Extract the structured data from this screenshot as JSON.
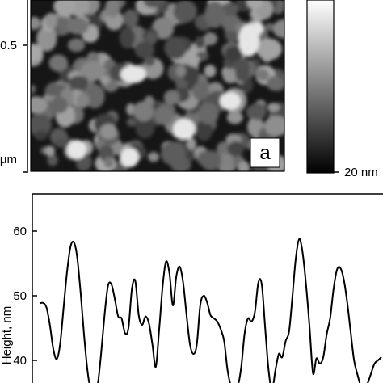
{
  "afm_image": {
    "y_tick_label": "0.5",
    "y_unit_label": "μm",
    "panel_label": "a",
    "colorbar_label": "20 nm"
  },
  "chart_data": {
    "type": "line",
    "ylabel": "Height, nm",
    "xlabel": "",
    "yticks": [
      40,
      50,
      60
    ],
    "ylim": [
      35,
      66
    ],
    "xlim": [
      0,
      100
    ],
    "grid": false,
    "legend": "none",
    "line_color": "#000000",
    "x": [
      0,
      1,
      2,
      3,
      4,
      5,
      6,
      7,
      8,
      9,
      10,
      11,
      12,
      13,
      14,
      15,
      16,
      17,
      18,
      19,
      20,
      21,
      22,
      23,
      24,
      25,
      26,
      27,
      28,
      29,
      30,
      31,
      32,
      33,
      34,
      35,
      36,
      37,
      38,
      39,
      40,
      41,
      42,
      43,
      44,
      45,
      46,
      47,
      48,
      49,
      50,
      51,
      52,
      53,
      54,
      55,
      56,
      57,
      58,
      59,
      60,
      61,
      62,
      63,
      64,
      65,
      66,
      67,
      68,
      69,
      70,
      71,
      72,
      73,
      74,
      75,
      76,
      77,
      78,
      79,
      80,
      81,
      82,
      83,
      84,
      85,
      86,
      87,
      88,
      89,
      90,
      91,
      92,
      93,
      94,
      95,
      96,
      97,
      98,
      99,
      100
    ],
    "y": [
      48.8,
      48.9,
      48.2,
      45.5,
      41.8,
      40.2,
      42.5,
      48,
      53.5,
      57.5,
      58.3,
      56,
      50.5,
      44,
      38.5,
      35.3,
      34.4,
      36.2,
      41,
      47,
      51.5,
      51.8,
      49.5,
      46.8,
      46.5,
      44.2,
      45,
      51,
      52.3,
      47,
      45.5,
      46.8,
      45.7,
      42.5,
      39,
      44.8,
      51.5,
      55.3,
      53.5,
      48.5,
      53,
      54.5,
      52,
      47,
      42.5,
      41,
      42.5,
      48.5,
      50,
      49,
      47,
      46.5,
      46,
      44.8,
      43,
      38.5,
      36,
      35.5,
      36,
      39,
      44.2,
      46.5,
      46,
      47.5,
      52,
      51.8,
      45,
      38.5,
      35.5,
      38.5,
      41,
      40.5,
      43,
      44.5,
      50,
      56,
      58.8,
      56.5,
      51.5,
      45,
      38,
      40.3,
      39.5,
      40.5,
      44,
      46.5,
      51,
      54,
      54.3,
      52.5,
      49,
      44.5,
      40,
      37.8,
      36,
      35.5,
      36.5,
      38,
      39.5,
      40,
      40.5
    ]
  }
}
